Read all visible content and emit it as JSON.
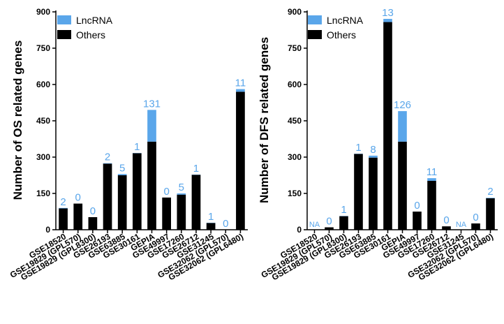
{
  "colors": {
    "lncrna": "#5aa6ea",
    "others": "#000000",
    "label": "#5aa6ea",
    "axis": "#000000"
  },
  "chart_data": [
    {
      "type": "bar",
      "stacked": true,
      "ylabel": "Number of OS related genes",
      "ylim": [
        0,
        900
      ],
      "yticks": [
        0,
        150,
        300,
        450,
        600,
        750,
        900
      ],
      "categories": [
        "GSE18520",
        "GSE19829 (GPL570)",
        "GSE19829 (GPL8300)",
        "GSE26193",
        "GSE63885",
        "GSE30161",
        "GEPIA",
        "GSE49997",
        "GSE17260",
        "GSE26712",
        "GSE31245",
        "GSE32062 (GPL570)",
        "GSE32062 (GPL6480)"
      ],
      "series": [
        {
          "name": "Others",
          "values": [
            88,
            108,
            52,
            273,
            225,
            316,
            364,
            133,
            145,
            227,
            28,
            0,
            570
          ]
        },
        {
          "name": "LncRNA",
          "values": [
            2,
            0,
            0,
            2,
            5,
            1,
            131,
            0,
            5,
            1,
            1,
            0,
            11
          ]
        }
      ],
      "bar_labels": [
        "2",
        "0",
        "0",
        "2",
        "5",
        "1",
        "131",
        "0",
        "5",
        "1",
        "1",
        "0",
        "11"
      ],
      "legend": [
        "LncRNA",
        "Others"
      ],
      "legend_position": "top-left"
    },
    {
      "type": "bar",
      "stacked": true,
      "ylabel": "Number of DFS related genes",
      "ylim": [
        0,
        900
      ],
      "yticks": [
        0,
        150,
        300,
        450,
        600,
        750,
        900
      ],
      "categories": [
        "GSE18520",
        "GSE19829 (GPL570)",
        "GSE19829 (GPL8300)",
        "GSE26193",
        "GSE63885",
        "GSE30161",
        "GEPIA",
        "GSE49997",
        "GSE17260",
        "GSE26712",
        "GSE31245",
        "GSE32062 (GPL570)",
        "GSE32062 (GPL6480)"
      ],
      "series": [
        {
          "name": "Others",
          "values": [
            0,
            10,
            56,
            313,
            298,
            858,
            364,
            75,
            202,
            14,
            0,
            26,
            130
          ]
        },
        {
          "name": "LncRNA",
          "values": [
            0,
            0,
            1,
            1,
            8,
            13,
            126,
            0,
            11,
            0,
            0,
            0,
            2
          ]
        }
      ],
      "bar_labels": [
        "NA",
        "0",
        "1",
        "1",
        "8",
        "13",
        "126",
        "0",
        "11",
        "0",
        "NA",
        "0",
        "2"
      ],
      "legend": [
        "LncRNA",
        "Others"
      ],
      "legend_position": "top-left"
    }
  ]
}
